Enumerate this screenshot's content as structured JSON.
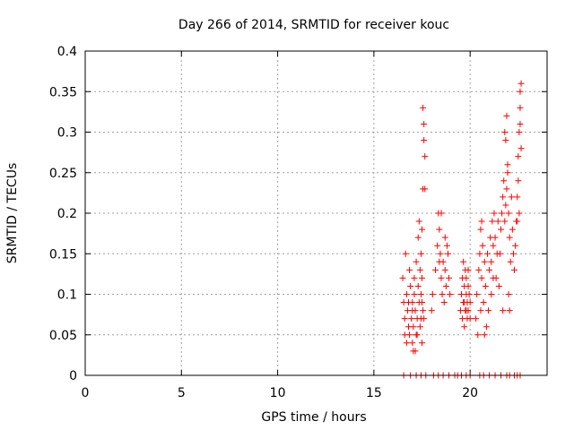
{
  "chart_data": {
    "type": "scatter",
    "title": "Day 266 of 2014, SRMTID for receiver kouc",
    "xlabel": "GPS time / hours",
    "ylabel": "SRMTID / TECUs",
    "xlim": [
      0,
      24
    ],
    "ylim": [
      0,
      0.4
    ],
    "x_ticks": [
      0,
      5,
      10,
      15,
      20
    ],
    "x_tick_labels": [
      "0",
      "5",
      "10",
      "15",
      "20"
    ],
    "y_ticks": [
      0,
      0.05,
      0.1,
      0.15,
      0.2,
      0.25,
      0.3,
      0.35,
      0.4
    ],
    "y_tick_labels": [
      "0",
      "0.05",
      "0.1",
      "0.15",
      "0.2",
      "0.25",
      "0.3",
      "0.35",
      "0.4"
    ],
    "grid": true,
    "marker": "+",
    "marker_color": "#ff0000",
    "series": [
      {
        "name": "SRMTID",
        "points": [
          [
            16.55,
            0.0
          ],
          [
            16.9,
            0.0
          ],
          [
            17.2,
            0.0
          ],
          [
            17.45,
            0.0
          ],
          [
            17.7,
            0.0
          ],
          [
            18.1,
            0.0
          ],
          [
            18.35,
            0.0
          ],
          [
            18.6,
            0.0
          ],
          [
            18.9,
            0.0
          ],
          [
            19.2,
            0.0
          ],
          [
            19.35,
            0.0
          ],
          [
            19.55,
            0.0
          ],
          [
            19.8,
            0.0
          ],
          [
            20.0,
            0.0
          ],
          [
            20.5,
            0.0
          ],
          [
            20.7,
            0.0
          ],
          [
            21.0,
            0.0
          ],
          [
            21.3,
            0.0
          ],
          [
            21.6,
            0.0
          ],
          [
            21.9,
            0.0
          ],
          [
            22.05,
            0.0
          ],
          [
            22.3,
            0.0
          ],
          [
            22.45,
            0.0
          ],
          [
            22.6,
            0.0
          ],
          [
            16.5,
            0.12
          ],
          [
            16.55,
            0.09
          ],
          [
            16.6,
            0.07
          ],
          [
            16.6,
            0.05
          ],
          [
            16.65,
            0.15
          ],
          [
            16.7,
            0.1
          ],
          [
            16.75,
            0.08
          ],
          [
            16.8,
            0.06
          ],
          [
            16.85,
            0.13
          ],
          [
            16.9,
            0.11
          ],
          [
            16.95,
            0.07
          ],
          [
            17.0,
            0.09
          ],
          [
            17.0,
            0.04
          ],
          [
            17.05,
            0.03
          ],
          [
            17.05,
            0.06
          ],
          [
            17.1,
            0.12
          ],
          [
            17.1,
            0.1
          ],
          [
            17.15,
            0.08
          ],
          [
            17.2,
            0.05
          ],
          [
            17.2,
            0.14
          ],
          [
            17.25,
            0.07
          ],
          [
            17.3,
            0.11
          ],
          [
            17.3,
            0.17
          ],
          [
            17.35,
            0.19
          ],
          [
            17.35,
            0.09
          ],
          [
            17.4,
            0.13
          ],
          [
            17.4,
            0.06
          ],
          [
            17.45,
            0.15
          ],
          [
            17.45,
            0.1
          ],
          [
            17.5,
            0.04
          ],
          [
            17.5,
            0.12
          ],
          [
            17.55,
            0.08
          ],
          [
            17.55,
            0.33
          ],
          [
            17.6,
            0.31
          ],
          [
            17.6,
            0.29
          ],
          [
            17.65,
            0.27
          ],
          [
            17.65,
            0.23
          ],
          [
            17.55,
            0.23
          ],
          [
            17.5,
            0.18
          ],
          [
            17.6,
            0.07
          ],
          [
            16.7,
            0.04
          ],
          [
            16.8,
            0.09
          ],
          [
            17.0,
            0.08
          ],
          [
            17.25,
            0.05
          ],
          [
            17.45,
            0.07
          ],
          [
            17.5,
            0.09
          ],
          [
            16.85,
            0.05
          ],
          [
            17.15,
            0.03
          ],
          [
            18.0,
            0.08
          ],
          [
            18.05,
            0.1
          ],
          [
            18.2,
            0.13
          ],
          [
            18.3,
            0.16
          ],
          [
            18.35,
            0.2
          ],
          [
            18.4,
            0.18
          ],
          [
            18.45,
            0.15
          ],
          [
            18.5,
            0.12
          ],
          [
            18.55,
            0.1
          ],
          [
            18.6,
            0.14
          ],
          [
            18.65,
            0.09
          ],
          [
            18.7,
            0.13
          ],
          [
            18.75,
            0.11
          ],
          [
            18.8,
            0.16
          ],
          [
            18.85,
            0.15
          ],
          [
            18.9,
            0.12
          ],
          [
            18.95,
            0.1
          ],
          [
            18.5,
            0.2
          ],
          [
            18.4,
            0.14
          ],
          [
            18.7,
            0.17
          ],
          [
            19.5,
            0.08
          ],
          [
            19.55,
            0.1
          ],
          [
            19.6,
            0.12
          ],
          [
            19.6,
            0.07
          ],
          [
            19.65,
            0.09
          ],
          [
            19.7,
            0.11
          ],
          [
            19.7,
            0.06
          ],
          [
            19.75,
            0.13
          ],
          [
            19.75,
            0.08
          ],
          [
            19.8,
            0.1
          ],
          [
            19.8,
            0.12
          ],
          [
            19.85,
            0.07
          ],
          [
            19.85,
            0.09
          ],
          [
            19.9,
            0.11
          ],
          [
            19.9,
            0.08
          ],
          [
            19.95,
            0.1
          ],
          [
            20.0,
            0.09
          ],
          [
            20.0,
            0.07
          ],
          [
            19.65,
            0.14
          ],
          [
            19.7,
            0.09
          ],
          [
            19.8,
            0.08
          ],
          [
            19.9,
            0.13
          ],
          [
            20.3,
            0.07
          ],
          [
            20.35,
            0.1
          ],
          [
            20.4,
            0.05
          ],
          [
            20.45,
            0.13
          ],
          [
            20.5,
            0.15
          ],
          [
            20.55,
            0.18
          ],
          [
            20.6,
            0.12
          ],
          [
            20.65,
            0.16
          ],
          [
            20.7,
            0.09
          ],
          [
            20.75,
            0.14
          ],
          [
            20.8,
            0.11
          ],
          [
            20.85,
            0.06
          ],
          [
            20.9,
            0.15
          ],
          [
            20.95,
            0.08
          ],
          [
            21.0,
            0.13
          ],
          [
            21.05,
            0.17
          ],
          [
            21.1,
            0.14
          ],
          [
            21.15,
            0.19
          ],
          [
            21.2,
            0.16
          ],
          [
            21.25,
            0.2
          ],
          [
            21.3,
            0.17
          ],
          [
            21.35,
            0.12
          ],
          [
            21.4,
            0.15
          ],
          [
            21.45,
            0.19
          ],
          [
            21.5,
            0.11
          ],
          [
            20.6,
            0.19
          ],
          [
            20.75,
            0.05
          ],
          [
            20.55,
            0.08
          ],
          [
            21.2,
            0.12
          ],
          [
            21.1,
            0.1
          ],
          [
            21.55,
            0.15
          ],
          [
            21.6,
            0.18
          ],
          [
            21.65,
            0.2
          ],
          [
            21.7,
            0.22
          ],
          [
            21.75,
            0.24
          ],
          [
            21.8,
            0.19
          ],
          [
            21.85,
            0.21
          ],
          [
            21.9,
            0.23
          ],
          [
            21.95,
            0.25
          ],
          [
            22.0,
            0.2
          ],
          [
            22.05,
            0.17
          ],
          [
            22.1,
            0.14
          ],
          [
            22.15,
            0.22
          ],
          [
            22.2,
            0.18
          ],
          [
            22.25,
            0.15
          ],
          [
            22.3,
            0.13
          ],
          [
            21.85,
            0.29
          ],
          [
            21.9,
            0.32
          ],
          [
            21.8,
            0.3
          ],
          [
            21.7,
            0.08
          ],
          [
            22.0,
            0.1
          ],
          [
            22.05,
            0.08
          ],
          [
            21.95,
            0.26
          ],
          [
            22.35,
            0.16
          ],
          [
            22.4,
            0.19
          ],
          [
            22.45,
            0.22
          ],
          [
            22.5,
            0.24
          ],
          [
            22.5,
            0.27
          ],
          [
            22.55,
            0.3
          ],
          [
            22.6,
            0.33
          ],
          [
            22.6,
            0.35
          ],
          [
            22.65,
            0.36
          ],
          [
            22.55,
            0.2
          ],
          [
            22.6,
            0.31
          ],
          [
            22.65,
            0.28
          ],
          [
            22.45,
            0.19
          ]
        ]
      }
    ]
  }
}
